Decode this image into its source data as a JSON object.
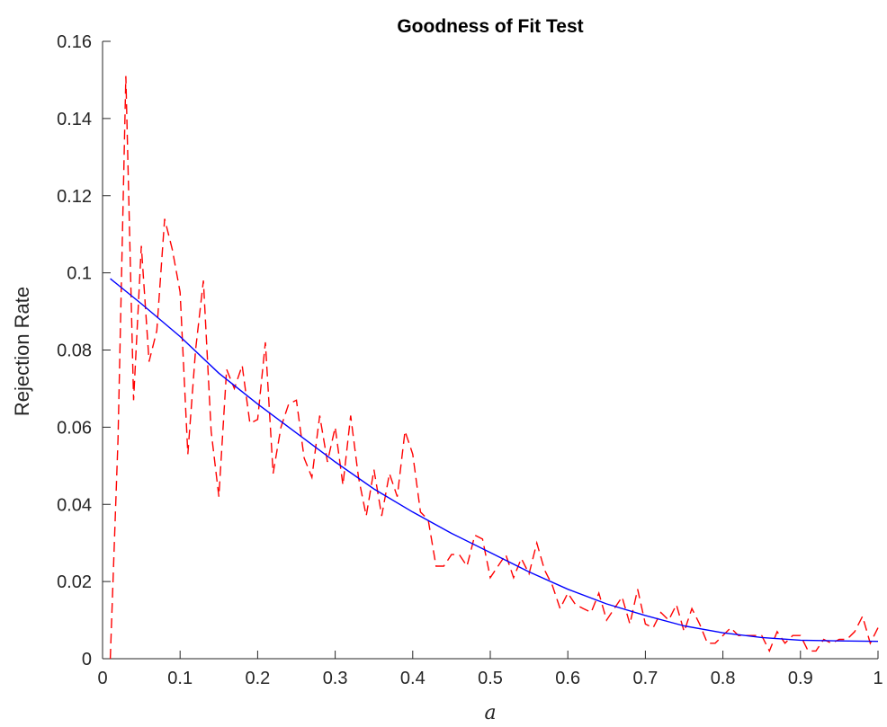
{
  "chart_data": {
    "type": "line",
    "title": "Goodness of Fit Test",
    "xlabel": "a",
    "ylabel": "Rejection Rate",
    "xlim": [
      0,
      1
    ],
    "ylim": [
      0,
      0.16
    ],
    "xticks": [
      "0",
      "0.1",
      "0.2",
      "0.3",
      "0.4",
      "0.5",
      "0.6",
      "0.7",
      "0.8",
      "0.9",
      "1"
    ],
    "yticks": [
      "0",
      "0.02",
      "0.04",
      "0.06",
      "0.08",
      "0.1",
      "0.12",
      "0.14",
      "0.16"
    ],
    "grid": false,
    "series": [
      {
        "style": "dashed",
        "color": "#ff0000",
        "x": [
          0.01,
          0.02,
          0.03,
          0.04,
          0.05,
          0.06,
          0.07,
          0.08,
          0.09,
          0.1,
          0.11,
          0.12,
          0.13,
          0.14,
          0.15,
          0.16,
          0.17,
          0.18,
          0.19,
          0.2,
          0.21,
          0.22,
          0.23,
          0.24,
          0.25,
          0.26,
          0.27,
          0.28,
          0.29,
          0.3,
          0.31,
          0.32,
          0.33,
          0.34,
          0.35,
          0.36,
          0.37,
          0.38,
          0.39,
          0.4,
          0.41,
          0.42,
          0.43,
          0.44,
          0.45,
          0.46,
          0.47,
          0.48,
          0.49,
          0.5,
          0.51,
          0.52,
          0.53,
          0.54,
          0.55,
          0.56,
          0.57,
          0.58,
          0.59,
          0.6,
          0.61,
          0.62,
          0.63,
          0.64,
          0.65,
          0.66,
          0.67,
          0.68,
          0.69,
          0.7,
          0.71,
          0.72,
          0.73,
          0.74,
          0.75,
          0.76,
          0.77,
          0.78,
          0.79,
          0.8,
          0.81,
          0.82,
          0.83,
          0.84,
          0.85,
          0.86,
          0.87,
          0.88,
          0.89,
          0.9,
          0.91,
          0.92,
          0.93,
          0.94,
          0.95,
          0.96,
          0.97,
          0.98,
          0.99,
          1.0
        ],
        "y": [
          0.0,
          0.057,
          0.151,
          0.067,
          0.107,
          0.077,
          0.085,
          0.114,
          0.106,
          0.095,
          0.053,
          0.08,
          0.098,
          0.059,
          0.042,
          0.075,
          0.07,
          0.076,
          0.061,
          0.062,
          0.082,
          0.048,
          0.06,
          0.066,
          0.067,
          0.052,
          0.047,
          0.063,
          0.051,
          0.06,
          0.045,
          0.063,
          0.047,
          0.037,
          0.049,
          0.037,
          0.048,
          0.042,
          0.059,
          0.053,
          0.038,
          0.036,
          0.024,
          0.024,
          0.027,
          0.027,
          0.024,
          0.032,
          0.031,
          0.021,
          0.024,
          0.027,
          0.021,
          0.026,
          0.022,
          0.03,
          0.023,
          0.019,
          0.013,
          0.017,
          0.014,
          0.013,
          0.012,
          0.017,
          0.01,
          0.013,
          0.016,
          0.009,
          0.018,
          0.009,
          0.008,
          0.012,
          0.01,
          0.014,
          0.007,
          0.013,
          0.009,
          0.004,
          0.004,
          0.006,
          0.008,
          0.006,
          0.006,
          0.006,
          0.006,
          0.002,
          0.007,
          0.004,
          0.006,
          0.006,
          0.002,
          0.002,
          0.005,
          0.004,
          0.005,
          0.005,
          0.007,
          0.011,
          0.004,
          0.008
        ]
      },
      {
        "style": "solid",
        "color": "#0000ff",
        "x": [
          0.01,
          0.05,
          0.1,
          0.15,
          0.2,
          0.25,
          0.3,
          0.35,
          0.4,
          0.45,
          0.5,
          0.55,
          0.6,
          0.65,
          0.7,
          0.75,
          0.8,
          0.85,
          0.9,
          0.95,
          1.0
        ],
        "y": [
          0.0985,
          0.092,
          0.0835,
          0.074,
          0.066,
          0.0585,
          0.051,
          0.044,
          0.038,
          0.0325,
          0.0275,
          0.0225,
          0.018,
          0.0142,
          0.0112,
          0.0085,
          0.0067,
          0.0055,
          0.0048,
          0.0046,
          0.0045
        ]
      }
    ]
  }
}
